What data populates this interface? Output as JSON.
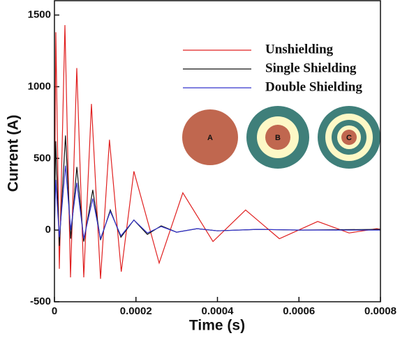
{
  "chart_data": {
    "type": "line",
    "xlabel": "Time (s)",
    "ylabel": "Current (A)",
    "xlim": [
      0,
      0.0008
    ],
    "xticks": [
      0,
      0.0002,
      0.0004,
      0.0006,
      0.0008
    ],
    "ylim": [
      -500,
      1600
    ],
    "yticks": [
      -500,
      0,
      500,
      1000,
      1500
    ],
    "legend": "upper right",
    "annotations": [
      "A",
      "B",
      "C"
    ],
    "series": [
      {
        "name": "Unshielding",
        "color": "#e02020",
        "x": [
          0,
          3.4e-06,
          1.2e-05,
          2.57e-05,
          3.94e-05,
          5.48e-05,
          7.19e-05,
          9.08e-05,
          0.000113,
          0.000135,
          0.000164,
          0.000195,
          0.000257,
          0.000315,
          0.000389,
          0.000469,
          0.000552,
          0.000646,
          0.000723,
          0.000791,
          0.0008
        ],
        "values": [
          0,
          1380,
          -270,
          1430,
          -330,
          1130,
          -330,
          880,
          -340,
          630,
          -290,
          410,
          -230,
          260,
          -80,
          140,
          -60,
          60,
          -20,
          10,
          5
        ]
      },
      {
        "name": "Single Shielding",
        "color": "#111111",
        "x": [
          0,
          3e-06,
          1.2e-05,
          2.7e-05,
          4e-05,
          5.5e-05,
          7.2e-05,
          9.4e-05,
          0.000113,
          0.000137,
          0.000163,
          0.000195,
          0.000228,
          0.000262,
          0.0003,
          0.00035,
          0.0004,
          0.0005,
          0.0006,
          0.0008
        ],
        "values": [
          0,
          620,
          -110,
          660,
          -60,
          440,
          -80,
          280,
          -70,
          140,
          -50,
          70,
          -30,
          30,
          -15,
          10,
          -5,
          5,
          0,
          5
        ]
      },
      {
        "name": "Double Shielding",
        "color": "#3333cc",
        "x": [
          0,
          3e-06,
          1.2e-05,
          2.7e-05,
          4e-05,
          5.5e-05,
          7.2e-05,
          9.4e-05,
          0.000113,
          0.000137,
          0.000163,
          0.000195,
          0.000228,
          0.000262,
          0.0003,
          0.00035,
          0.0004,
          0.0005,
          0.0006,
          0.0008
        ],
        "values": [
          0,
          350,
          -50,
          450,
          0,
          330,
          -60,
          220,
          -60,
          130,
          -40,
          70,
          -20,
          25,
          -15,
          10,
          -5,
          5,
          0,
          0
        ]
      }
    ]
  }
}
